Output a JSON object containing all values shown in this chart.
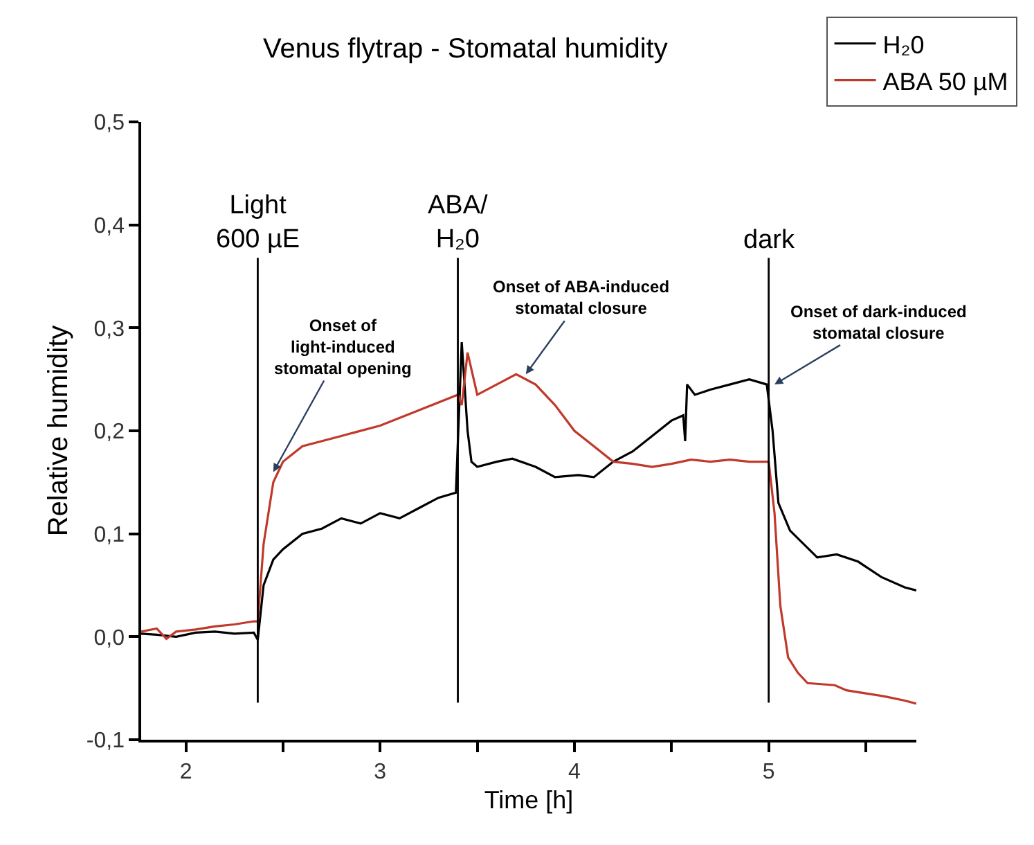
{
  "chart_data": {
    "type": "line",
    "title": "Venus flytrap - Stomatal humidity",
    "xlabel": "Time [h]",
    "ylabel": "Relative humidity",
    "xlim": [
      1.77,
      5.76
    ],
    "xticks": [
      2,
      {
        "value": 2.5,
        "label": null
      },
      3,
      {
        "value": 3.5,
        "label": null
      },
      4,
      {
        "value": 4.5,
        "label": null
      },
      5,
      {
        "value": 5.5,
        "label": null
      }
    ],
    "ylim": [
      -0.1,
      0.5
    ],
    "yticks": [
      {
        "value": -0.1,
        "label": "-0,1"
      },
      {
        "value": 0.0,
        "label": "0,0"
      },
      {
        "value": 0.1,
        "label": "0,1"
      },
      {
        "value": 0.2,
        "label": "0,2"
      },
      {
        "value": 0.3,
        "label": "0,3"
      },
      {
        "value": 0.4,
        "label": "0,4"
      },
      {
        "value": 0.5,
        "label": "0,5"
      }
    ],
    "legend": "top right",
    "marker": "none",
    "line_style": "solid",
    "series": [
      {
        "name": "H₂0",
        "color": "#000000",
        "x": [
          1.77,
          1.85,
          1.95,
          2.05,
          2.15,
          2.25,
          2.35,
          2.37,
          2.4,
          2.45,
          2.5,
          2.6,
          2.7,
          2.8,
          2.9,
          3.0,
          3.1,
          3.2,
          3.3,
          3.39,
          3.42,
          3.45,
          3.47,
          3.5,
          3.6,
          3.68,
          3.8,
          3.9,
          4.02,
          4.1,
          4.2,
          4.3,
          4.4,
          4.5,
          4.56,
          4.57,
          4.58,
          4.62,
          4.7,
          4.8,
          4.9,
          4.99,
          5.02,
          5.05,
          5.11,
          5.25,
          5.35,
          5.46,
          5.58,
          5.7,
          5.76
        ],
        "values": [
          0.003,
          0.002,
          0.0,
          0.004,
          0.005,
          0.003,
          0.004,
          -0.003,
          0.05,
          0.075,
          0.085,
          0.1,
          0.105,
          0.115,
          0.11,
          0.12,
          0.115,
          0.125,
          0.135,
          0.14,
          0.286,
          0.2,
          0.17,
          0.165,
          0.17,
          0.173,
          0.165,
          0.155,
          0.157,
          0.155,
          0.17,
          0.18,
          0.195,
          0.21,
          0.215,
          0.19,
          0.245,
          0.235,
          0.24,
          0.245,
          0.25,
          0.245,
          0.2,
          0.13,
          0.103,
          0.077,
          0.08,
          0.073,
          0.058,
          0.048,
          0.045
        ]
      },
      {
        "name": "ABA 50 µM",
        "color": "#c0392b",
        "x": [
          1.77,
          1.85,
          1.9,
          1.95,
          2.05,
          2.15,
          2.25,
          2.35,
          2.37,
          2.4,
          2.45,
          2.5,
          2.6,
          2.8,
          3.0,
          3.2,
          3.4,
          3.42,
          3.45,
          3.5,
          3.6,
          3.7,
          3.8,
          3.9,
          4.0,
          4.1,
          4.2,
          4.3,
          4.4,
          4.5,
          4.6,
          4.7,
          4.8,
          4.9,
          5.0,
          5.03,
          5.06,
          5.1,
          5.15,
          5.2,
          5.34,
          5.4,
          5.5,
          5.6,
          5.7,
          5.76
        ],
        "values": [
          0.005,
          0.008,
          -0.002,
          0.005,
          0.007,
          0.01,
          0.012,
          0.015,
          0.015,
          0.09,
          0.15,
          0.17,
          0.185,
          0.195,
          0.205,
          0.22,
          0.235,
          0.225,
          0.276,
          0.235,
          0.245,
          0.255,
          0.245,
          0.225,
          0.2,
          0.185,
          0.17,
          0.168,
          0.165,
          0.168,
          0.172,
          0.17,
          0.172,
          0.17,
          0.17,
          0.12,
          0.03,
          -0.02,
          -0.035,
          -0.045,
          -0.047,
          -0.052,
          -0.055,
          -0.058,
          -0.062,
          -0.065
        ]
      }
    ],
    "ref_lines": [
      {
        "axis": "x",
        "value": 2.37,
        "label": "Light\n600 µE",
        "color": "#000000"
      },
      {
        "axis": "x",
        "value": 3.4,
        "label": "ABA/\nH₂0",
        "color": "#000000"
      },
      {
        "axis": "x",
        "value": 5.0,
        "label": "dark",
        "color": "#000000"
      }
    ],
    "annotations": [
      {
        "text": "Onset of\nlight-induced\nstomatal opening",
        "x": 2.45,
        "y": 0.16
      },
      {
        "text": "Onset of ABA-induced\nstomatal closure",
        "x": 3.75,
        "y": 0.255
      },
      {
        "text": "Onset of dark-induced\nstomatal closure",
        "x": 5.03,
        "y": 0.245
      }
    ]
  }
}
